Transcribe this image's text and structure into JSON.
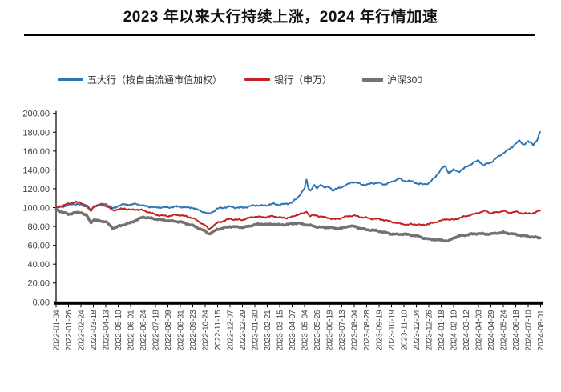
{
  "title": "2023 年以来大行持续上涨，2024 年行情加速",
  "colors": {
    "accent_blue": "#2E75B6",
    "accent_red": "#C22222",
    "accent_gray": "#767171",
    "axis": "#000000",
    "tick_text": "#404040"
  },
  "legend": [
    {
      "label": "五大行（按自由流通市值加权）",
      "color": "#2E75B6",
      "swatch_w": 32,
      "swatch_h": 3
    },
    {
      "label": "银行（申万）",
      "color": "#C22222",
      "swatch_w": 32,
      "swatch_h": 3
    },
    {
      "label": "沪深300",
      "color": "#767171",
      "swatch_w": 26,
      "swatch_h": 5
    }
  ],
  "chart_data": {
    "type": "line",
    "title": "",
    "xlabel": "",
    "ylabel": "",
    "ylim": [
      0,
      200
    ],
    "y_tick_step": 20,
    "y_tick_labels": [
      "0.00",
      "20.00",
      "40.00",
      "60.00",
      "80.00",
      "100.00",
      "120.00",
      "140.00",
      "160.00",
      "180.00",
      "200.00"
    ],
    "grid": false,
    "legend_position": "top",
    "x_labels": [
      "2022-01-04",
      "2022-01-26",
      "2022-02-24",
      "2022-03-18",
      "2022-04-13",
      "2022-05-10",
      "2022-06-01",
      "2022-06-24",
      "2022-07-18",
      "2022-08-09",
      "2022-08-31",
      "2022-09-23",
      "2022-10-24",
      "2022-11-15",
      "2022-12-07",
      "2022-12-29",
      "2023-01-30",
      "2023-02-21",
      "2023-03-15",
      "2023-04-07",
      "2023-05-04",
      "2023-05-26",
      "2023-06-19",
      "2023-07-13",
      "2023-08-04",
      "2023-08-28",
      "2023-09-19",
      "2023-10-19",
      "2023-11-10",
      "2023-12-04",
      "2023-12-26",
      "2024-01-18",
      "2024-02-19",
      "2024-03-12",
      "2024-04-03",
      "2024-04-29",
      "2024-05-24",
      "2024-06-18",
      "2024-07-10",
      "2024-08-01"
    ],
    "series": [
      {
        "name": "五大行（按自由流通市值加权）",
        "color": "#2E75B6",
        "width": 2,
        "wiggle": 1.0,
        "phase": 0,
        "points": [
          [
            0,
            99
          ],
          [
            0.5,
            101
          ],
          [
            1,
            102.5
          ],
          [
            1.5,
            104
          ],
          [
            2,
            103
          ],
          [
            2.5,
            101
          ],
          [
            2.8,
            96
          ],
          [
            3,
            101
          ],
          [
            3.5,
            103
          ],
          [
            4,
            104
          ],
          [
            4.6,
            99
          ],
          [
            5,
            102
          ],
          [
            5.5,
            103.5
          ],
          [
            6,
            103
          ],
          [
            6.5,
            104
          ],
          [
            7,
            102
          ],
          [
            7.5,
            101
          ],
          [
            8,
            100
          ],
          [
            8.5,
            100.5
          ],
          [
            9,
            100
          ],
          [
            9.5,
            101
          ],
          [
            10,
            101
          ],
          [
            10.5,
            100
          ],
          [
            11,
            100
          ],
          [
            11.5,
            97
          ],
          [
            12,
            95
          ],
          [
            12.3,
            93
          ],
          [
            13,
            99
          ],
          [
            13.5,
            100
          ],
          [
            14,
            101
          ],
          [
            14.5,
            100
          ],
          [
            15,
            100
          ],
          [
            15.5,
            101
          ],
          [
            16,
            102.5
          ],
          [
            16.5,
            102
          ],
          [
            17,
            102.5
          ],
          [
            17.5,
            104
          ],
          [
            18,
            103
          ],
          [
            18.5,
            104
          ],
          [
            19,
            105.5
          ],
          [
            19.4,
            110
          ],
          [
            19.7,
            115
          ],
          [
            20,
            120
          ],
          [
            20.15,
            130
          ],
          [
            20.3,
            121
          ],
          [
            20.5,
            118
          ],
          [
            20.75,
            124
          ],
          [
            21,
            120
          ],
          [
            21.3,
            125
          ],
          [
            21.6,
            121
          ],
          [
            22,
            122
          ],
          [
            22.3,
            118
          ],
          [
            22.6,
            120
          ],
          [
            23,
            122
          ],
          [
            23.4,
            124
          ],
          [
            23.8,
            127
          ],
          [
            24,
            127
          ],
          [
            24.5,
            125
          ],
          [
            25,
            124
          ],
          [
            25.4,
            126
          ],
          [
            26,
            126
          ],
          [
            26.4,
            124.5
          ],
          [
            27,
            127
          ],
          [
            27.6,
            131
          ],
          [
            28,
            128
          ],
          [
            28.4,
            128.5
          ],
          [
            29,
            126
          ],
          [
            29.6,
            124.5
          ],
          [
            30,
            126
          ],
          [
            30.5,
            132
          ],
          [
            31,
            141
          ],
          [
            31.3,
            144
          ],
          [
            31.6,
            137
          ],
          [
            32,
            140
          ],
          [
            32.4,
            138
          ],
          [
            33,
            143
          ],
          [
            33.5,
            147
          ],
          [
            34,
            150
          ],
          [
            34.4,
            145
          ],
          [
            35,
            148
          ],
          [
            35.5,
            153
          ],
          [
            36,
            158
          ],
          [
            36.5,
            162
          ],
          [
            37,
            168
          ],
          [
            37.3,
            171
          ],
          [
            37.6,
            167
          ],
          [
            38,
            170
          ],
          [
            38.4,
            167
          ],
          [
            38.7,
            171
          ],
          [
            39,
            181
          ]
        ]
      },
      {
        "name": "银行（申万）",
        "color": "#C22222",
        "width": 2,
        "wiggle": 0.9,
        "phase": 1.3,
        "points": [
          [
            0,
            100
          ],
          [
            0.5,
            102.5
          ],
          [
            1,
            104
          ],
          [
            1.5,
            106
          ],
          [
            2,
            105
          ],
          [
            2.5,
            102
          ],
          [
            2.8,
            96
          ],
          [
            3,
            101
          ],
          [
            3.5,
            103
          ],
          [
            4,
            102
          ],
          [
            4.6,
            97
          ],
          [
            5,
            98
          ],
          [
            5.5,
            99
          ],
          [
            6,
            97.5
          ],
          [
            6.5,
            98
          ],
          [
            7,
            97
          ],
          [
            7.5,
            95
          ],
          [
            8,
            92.5
          ],
          [
            8.5,
            91.5
          ],
          [
            9,
            91
          ],
          [
            9.5,
            92
          ],
          [
            10,
            92
          ],
          [
            10.5,
            90.5
          ],
          [
            11,
            89
          ],
          [
            11.5,
            85
          ],
          [
            12,
            81
          ],
          [
            12.3,
            77
          ],
          [
            13,
            84
          ],
          [
            13.5,
            86
          ],
          [
            14,
            88
          ],
          [
            14.5,
            87
          ],
          [
            15,
            87
          ],
          [
            15.5,
            89
          ],
          [
            16,
            90.5
          ],
          [
            16.5,
            90
          ],
          [
            17,
            90
          ],
          [
            17.5,
            91
          ],
          [
            18,
            89.5
          ],
          [
            18.5,
            89
          ],
          [
            19,
            90
          ],
          [
            19.5,
            93
          ],
          [
            20,
            94
          ],
          [
            20.15,
            96.5
          ],
          [
            20.4,
            91
          ],
          [
            20.7,
            92
          ],
          [
            21,
            91.5
          ],
          [
            21.5,
            90
          ],
          [
            22,
            89
          ],
          [
            22.3,
            87.5
          ],
          [
            22.6,
            88
          ],
          [
            23,
            89
          ],
          [
            23.5,
            91
          ],
          [
            24,
            91.5
          ],
          [
            24.5,
            90
          ],
          [
            25,
            89
          ],
          [
            25.5,
            88
          ],
          [
            26,
            88
          ],
          [
            26.5,
            86.5
          ],
          [
            27,
            85
          ],
          [
            27.5,
            83.5
          ],
          [
            28,
            82.5
          ],
          [
            28.3,
            81.5
          ],
          [
            28.6,
            82.5
          ],
          [
            29,
            82
          ],
          [
            29.4,
            81.5
          ],
          [
            30,
            82.5
          ],
          [
            30.5,
            84.5
          ],
          [
            31,
            86
          ],
          [
            31.4,
            88
          ],
          [
            31.7,
            87
          ],
          [
            32,
            87
          ],
          [
            32.5,
            89
          ],
          [
            33,
            91
          ],
          [
            33.5,
            92.5
          ],
          [
            34,
            94.5
          ],
          [
            34.6,
            96.5
          ],
          [
            35,
            94
          ],
          [
            35.5,
            95
          ],
          [
            36,
            96.5
          ],
          [
            36.4,
            94.5
          ],
          [
            37,
            95.5
          ],
          [
            37.5,
            94
          ],
          [
            38,
            93.5
          ],
          [
            38.5,
            94.5
          ],
          [
            39,
            97
          ]
        ]
      },
      {
        "name": "沪深300",
        "color": "#767171",
        "width": 3.5,
        "wiggle": 0.8,
        "phase": 2.6,
        "points": [
          [
            0,
            98
          ],
          [
            0.5,
            95
          ],
          [
            1,
            93
          ],
          [
            1.5,
            94.5
          ],
          [
            2,
            95
          ],
          [
            2.5,
            91
          ],
          [
            2.8,
            84
          ],
          [
            3,
            87
          ],
          [
            3.5,
            86
          ],
          [
            4,
            85
          ],
          [
            4.6,
            78
          ],
          [
            5,
            80
          ],
          [
            5.5,
            82
          ],
          [
            6,
            84
          ],
          [
            6.5,
            87
          ],
          [
            7,
            90
          ],
          [
            7.5,
            89
          ],
          [
            8,
            88
          ],
          [
            8.5,
            87
          ],
          [
            9,
            86
          ],
          [
            9.5,
            85.5
          ],
          [
            10,
            85
          ],
          [
            10.5,
            83
          ],
          [
            11,
            81
          ],
          [
            11.5,
            78
          ],
          [
            12,
            75
          ],
          [
            12.3,
            72
          ],
          [
            13,
            77
          ],
          [
            13.5,
            78.5
          ],
          [
            14,
            80
          ],
          [
            14.5,
            79.5
          ],
          [
            15,
            79
          ],
          [
            15.5,
            80
          ],
          [
            16,
            82
          ],
          [
            16.5,
            82.5
          ],
          [
            17,
            82
          ],
          [
            17.5,
            82.5
          ],
          [
            18,
            81.5
          ],
          [
            18.5,
            82
          ],
          [
            19,
            83
          ],
          [
            19.5,
            83.5
          ],
          [
            20,
            82
          ],
          [
            20.5,
            81
          ],
          [
            21,
            79.5
          ],
          [
            21.5,
            79
          ],
          [
            22,
            79
          ],
          [
            22.5,
            78
          ],
          [
            23,
            78
          ],
          [
            23.6,
            80.5
          ],
          [
            24,
            80
          ],
          [
            24.5,
            78
          ],
          [
            25,
            76.5
          ],
          [
            25.5,
            76
          ],
          [
            26,
            75
          ],
          [
            26.5,
            73.5
          ],
          [
            27,
            72
          ],
          [
            27.5,
            71.5
          ],
          [
            28,
            72
          ],
          [
            28.5,
            71
          ],
          [
            29,
            70
          ],
          [
            29.5,
            68
          ],
          [
            30,
            66.5
          ],
          [
            30.5,
            66
          ],
          [
            31,
            65.5
          ],
          [
            31.6,
            64.5
          ],
          [
            32,
            68
          ],
          [
            32.5,
            70
          ],
          [
            33,
            71
          ],
          [
            33.5,
            72
          ],
          [
            34,
            72.5
          ],
          [
            34.5,
            72
          ],
          [
            35,
            72
          ],
          [
            35.5,
            73
          ],
          [
            36,
            73.5
          ],
          [
            36.8,
            72
          ],
          [
            37,
            71.5
          ],
          [
            37.5,
            70.5
          ],
          [
            38,
            69.5
          ],
          [
            38.5,
            68.5
          ],
          [
            39,
            68
          ]
        ]
      }
    ]
  }
}
